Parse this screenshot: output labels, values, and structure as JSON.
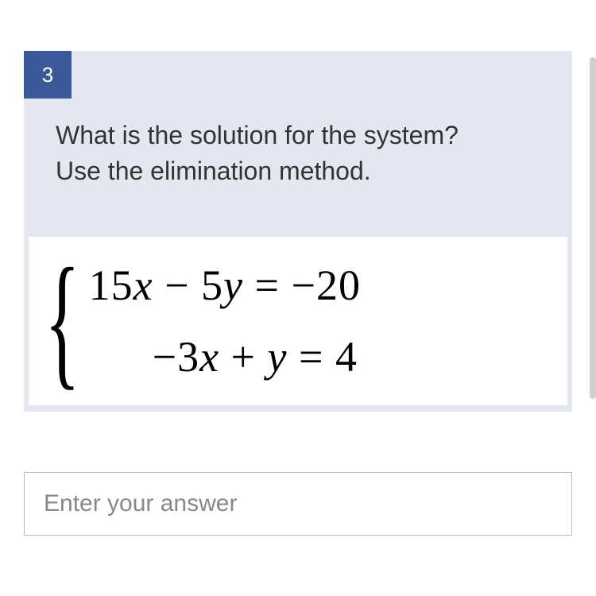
{
  "question": {
    "number": "3",
    "prompt_line1": "What is the solution for the system?",
    "prompt_line2": "Use the elimination method.",
    "badge_bg": "#3b5998",
    "card_bg": "#e4e7ef",
    "text_color": "#333333"
  },
  "equations": {
    "eq1": {
      "coef1": "15",
      "var1": "x",
      "op1": " − ",
      "coef2": "5",
      "var2": "y",
      "eq": " = ",
      "rhs": "−20"
    },
    "eq2": {
      "coef1": "−3",
      "var1": "x",
      "op1": " + ",
      "coef2": "",
      "var2": "y",
      "eq": " = ",
      "rhs": "4"
    },
    "font_color": "#000000"
  },
  "answer": {
    "placeholder": "Enter your answer",
    "value": ""
  }
}
